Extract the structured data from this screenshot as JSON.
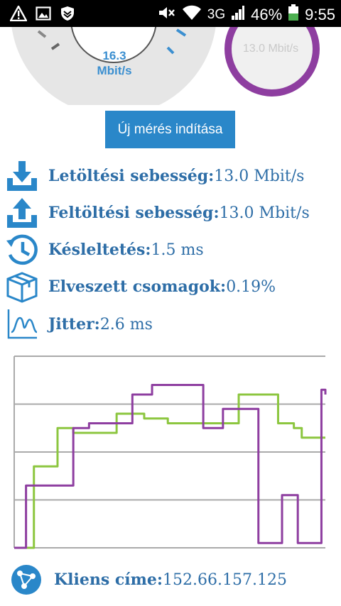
{
  "status_bar": {
    "battery": "46%",
    "network": "3G",
    "time": "9:55"
  },
  "gauges": {
    "main_value": "16.3",
    "main_unit": "Mbit/s",
    "secondary_value": "13.0 Mbit/s"
  },
  "new_test_button": "Új mérés indítása",
  "stats": [
    {
      "label": "Letöltési sebesség:",
      "value": "13.0 Mbit/s",
      "icon": "download-icon"
    },
    {
      "label": "Feltöltési sebesség:",
      "value": "13.0 Mbit/s",
      "icon": "upload-icon"
    },
    {
      "label": "Késleltetés:",
      "value": "1.5 ms",
      "icon": "latency-clock-icon"
    },
    {
      "label": "Elveszett csomagok:",
      "value": "0.19%",
      "icon": "package-box-icon"
    },
    {
      "label": "Jitter:",
      "value": "2.6 ms",
      "icon": "jitter-chart-icon"
    }
  ],
  "client": {
    "label": "Kliens címe:",
    "value": "152.66.157.125"
  },
  "colors": {
    "accent": "#2a87c9",
    "text": "#2e6ea7",
    "gauge_ring": "#8e3ea0",
    "series_green": "#8cc63f",
    "series_purple": "#8e3ea0"
  },
  "chart_data": {
    "type": "line",
    "x": [
      0,
      1,
      2,
      3,
      4,
      5,
      6,
      7,
      8,
      9,
      10,
      11,
      12,
      13,
      14,
      15,
      16,
      17,
      18,
      19,
      20,
      21,
      22,
      23,
      24,
      25,
      26,
      27,
      28,
      29,
      30,
      31,
      32,
      33,
      34,
      35,
      36,
      37,
      38,
      39,
      40,
      41,
      42,
      43,
      44,
      45,
      46,
      47,
      48,
      49,
      50,
      51,
      52,
      53,
      54,
      55,
      56,
      57,
      58,
      59,
      60,
      61,
      62,
      63,
      64,
      65,
      66,
      67,
      68,
      69,
      70,
      71,
      72,
      73,
      74,
      75,
      76,
      77,
      78,
      79
    ],
    "ylim": [
      0,
      4
    ],
    "grid": true,
    "series": [
      {
        "color": "#8cc63f",
        "values": [
          0,
          0,
          0,
          0,
          0,
          1.7,
          1.7,
          1.7,
          1.7,
          1.7,
          1.7,
          2.5,
          2.5,
          2.5,
          2.5,
          2.4,
          2.4,
          2.4,
          2.4,
          2.4,
          2.4,
          2.4,
          2.4,
          2.4,
          2.4,
          2.4,
          2.8,
          2.8,
          2.8,
          2.8,
          2.8,
          2.8,
          2.8,
          2.7,
          2.7,
          2.7,
          2.7,
          2.7,
          2.7,
          2.6,
          2.6,
          2.6,
          2.6,
          2.6,
          2.6,
          2.6,
          2.6,
          2.6,
          2.6,
          2.6,
          2.6,
          2.6,
          2.6,
          2.6,
          2.6,
          2.6,
          2.6,
          3.2,
          3.2,
          3.2,
          3.2,
          3.2,
          3.2,
          3.2,
          3.2,
          3.2,
          3.2,
          2.6,
          2.6,
          2.6,
          2.6,
          2.5,
          2.5,
          2.3,
          2.3,
          2.3,
          2.3,
          2.3,
          2.3,
          2.3
        ]
      },
      {
        "color": "#8e3ea0",
        "values": [
          0,
          0,
          0,
          1.3,
          1.3,
          1.3,
          1.3,
          1.3,
          1.3,
          1.3,
          1.3,
          1.3,
          1.3,
          1.3,
          1.3,
          2.5,
          2.5,
          2.5,
          2.5,
          2.6,
          2.6,
          2.6,
          2.6,
          2.6,
          2.6,
          2.6,
          2.6,
          2.6,
          2.6,
          2.6,
          3.2,
          3.2,
          3.2,
          3.2,
          3.2,
          3.4,
          3.4,
          3.4,
          3.4,
          3.4,
          3.4,
          3.4,
          3.4,
          3.4,
          3.4,
          3.4,
          3.4,
          3.4,
          2.5,
          2.5,
          2.5,
          2.5,
          2.5,
          2.9,
          2.9,
          2.9,
          2.9,
          2.9,
          2.9,
          2.9,
          2.9,
          2.9,
          0.1,
          0.1,
          0.1,
          0.1,
          0.1,
          0.1,
          1.1,
          1.1,
          1.1,
          1.1,
          0.1,
          0.1,
          0.1,
          0.1,
          0.1,
          0.1,
          3.3,
          3.2
        ]
      }
    ]
  }
}
